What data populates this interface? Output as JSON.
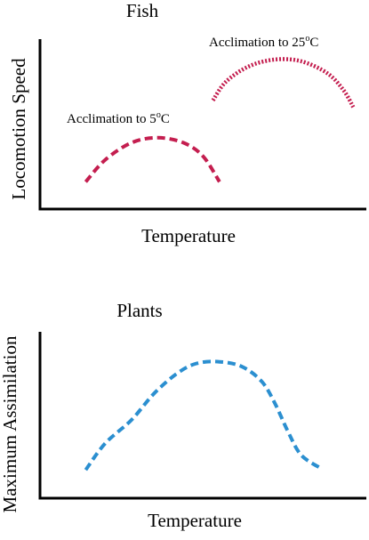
{
  "chart_data": [
    {
      "type": "line",
      "title": "Fish",
      "xlabel": "Temperature",
      "ylabel": "Locomotion Speed",
      "color": "#c41e4f",
      "series": [
        {
          "name": "Acclimation to 5°C",
          "label_main": "Acclimation to 5",
          "label_sup": "o",
          "label_unit": "C",
          "style": "dashed",
          "points": [
            [
              0.14,
              0.16
            ],
            [
              0.2,
              0.29
            ],
            [
              0.28,
              0.39
            ],
            [
              0.36,
              0.42
            ],
            [
              0.44,
              0.39
            ],
            [
              0.5,
              0.31
            ],
            [
              0.55,
              0.16
            ]
          ]
        },
        {
          "name": "Acclimation to 25°C",
          "label_main": "Acclimation to 25",
          "label_sup": "o",
          "label_unit": "C",
          "style": "dotted",
          "points": [
            [
              0.53,
              0.64
            ],
            [
              0.57,
              0.75
            ],
            [
              0.64,
              0.84
            ],
            [
              0.72,
              0.88
            ],
            [
              0.8,
              0.87
            ],
            [
              0.88,
              0.8
            ],
            [
              0.93,
              0.7
            ],
            [
              0.96,
              0.6
            ]
          ]
        }
      ]
    },
    {
      "type": "line",
      "title": "Plants",
      "xlabel": "Temperature",
      "ylabel": "Maximum Assimilation",
      "color": "#2b8fd0",
      "series": [
        {
          "name": "",
          "style": "dashed",
          "points": [
            [
              0.14,
              0.17
            ],
            [
              0.2,
              0.33
            ],
            [
              0.28,
              0.47
            ],
            [
              0.35,
              0.63
            ],
            [
              0.42,
              0.75
            ],
            [
              0.48,
              0.81
            ],
            [
              0.55,
              0.82
            ],
            [
              0.62,
              0.79
            ],
            [
              0.68,
              0.7
            ],
            [
              0.72,
              0.57
            ],
            [
              0.76,
              0.4
            ],
            [
              0.8,
              0.26
            ],
            [
              0.86,
              0.18
            ]
          ]
        }
      ]
    }
  ]
}
